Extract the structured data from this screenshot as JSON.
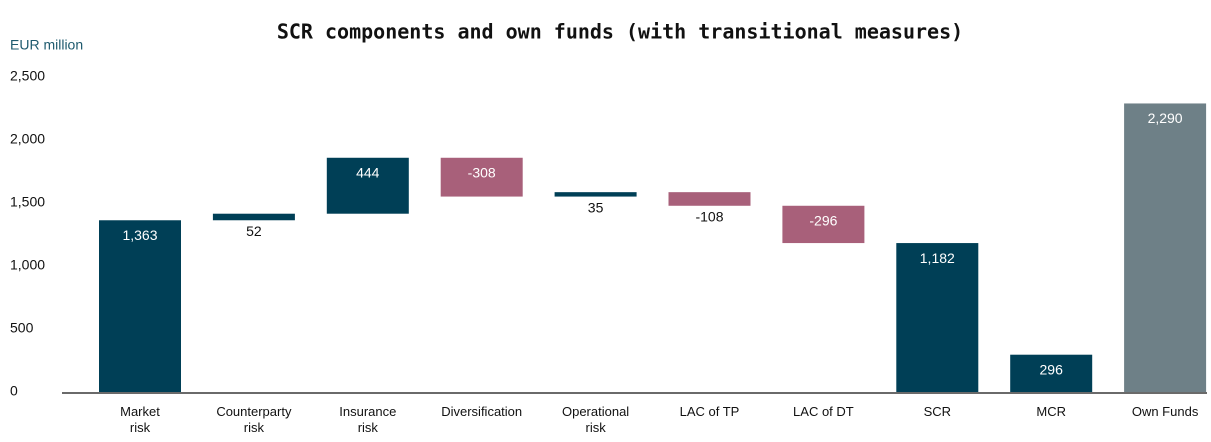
{
  "chart_data": {
    "type": "waterfall",
    "title": "SCR components and own funds (with transitional measures)",
    "y_axis_label": "EUR million",
    "categories": [
      "Market\nrisk",
      "Counterparty\nrisk",
      "Insurance\nrisk",
      "Diversification",
      "Operational\nrisk",
      "LAC of TP",
      "LAC of DT",
      "SCR",
      "MCR",
      "Own Funds"
    ],
    "values": [
      1363,
      52,
      444,
      -308,
      35,
      -108,
      -296,
      1182,
      296,
      2290
    ],
    "value_labels": [
      "1,363",
      "52",
      "444",
      "-308",
      "35",
      "-108",
      "-296",
      "1,182",
      "296",
      "2,290"
    ],
    "measure": [
      "absolute",
      "relative",
      "relative",
      "relative",
      "relative",
      "relative",
      "relative",
      "total",
      "absolute",
      "absolute"
    ],
    "colors": [
      "#003f56",
      "#003f56",
      "#003f56",
      "#a8607a",
      "#003f56",
      "#a8607a",
      "#a8607a",
      "#003f56",
      "#003f56",
      "#6e8087"
    ],
    "ylim": [
      0,
      2500
    ],
    "yticks": [
      0,
      500,
      {
        "value": 1000,
        "label": "1,000"
      },
      {
        "value": 1500,
        "label": "1,500"
      },
      {
        "value": 2000,
        "label": "2,000"
      },
      {
        "value": 2500,
        "label": "2,500"
      }
    ],
    "grid": false
  }
}
